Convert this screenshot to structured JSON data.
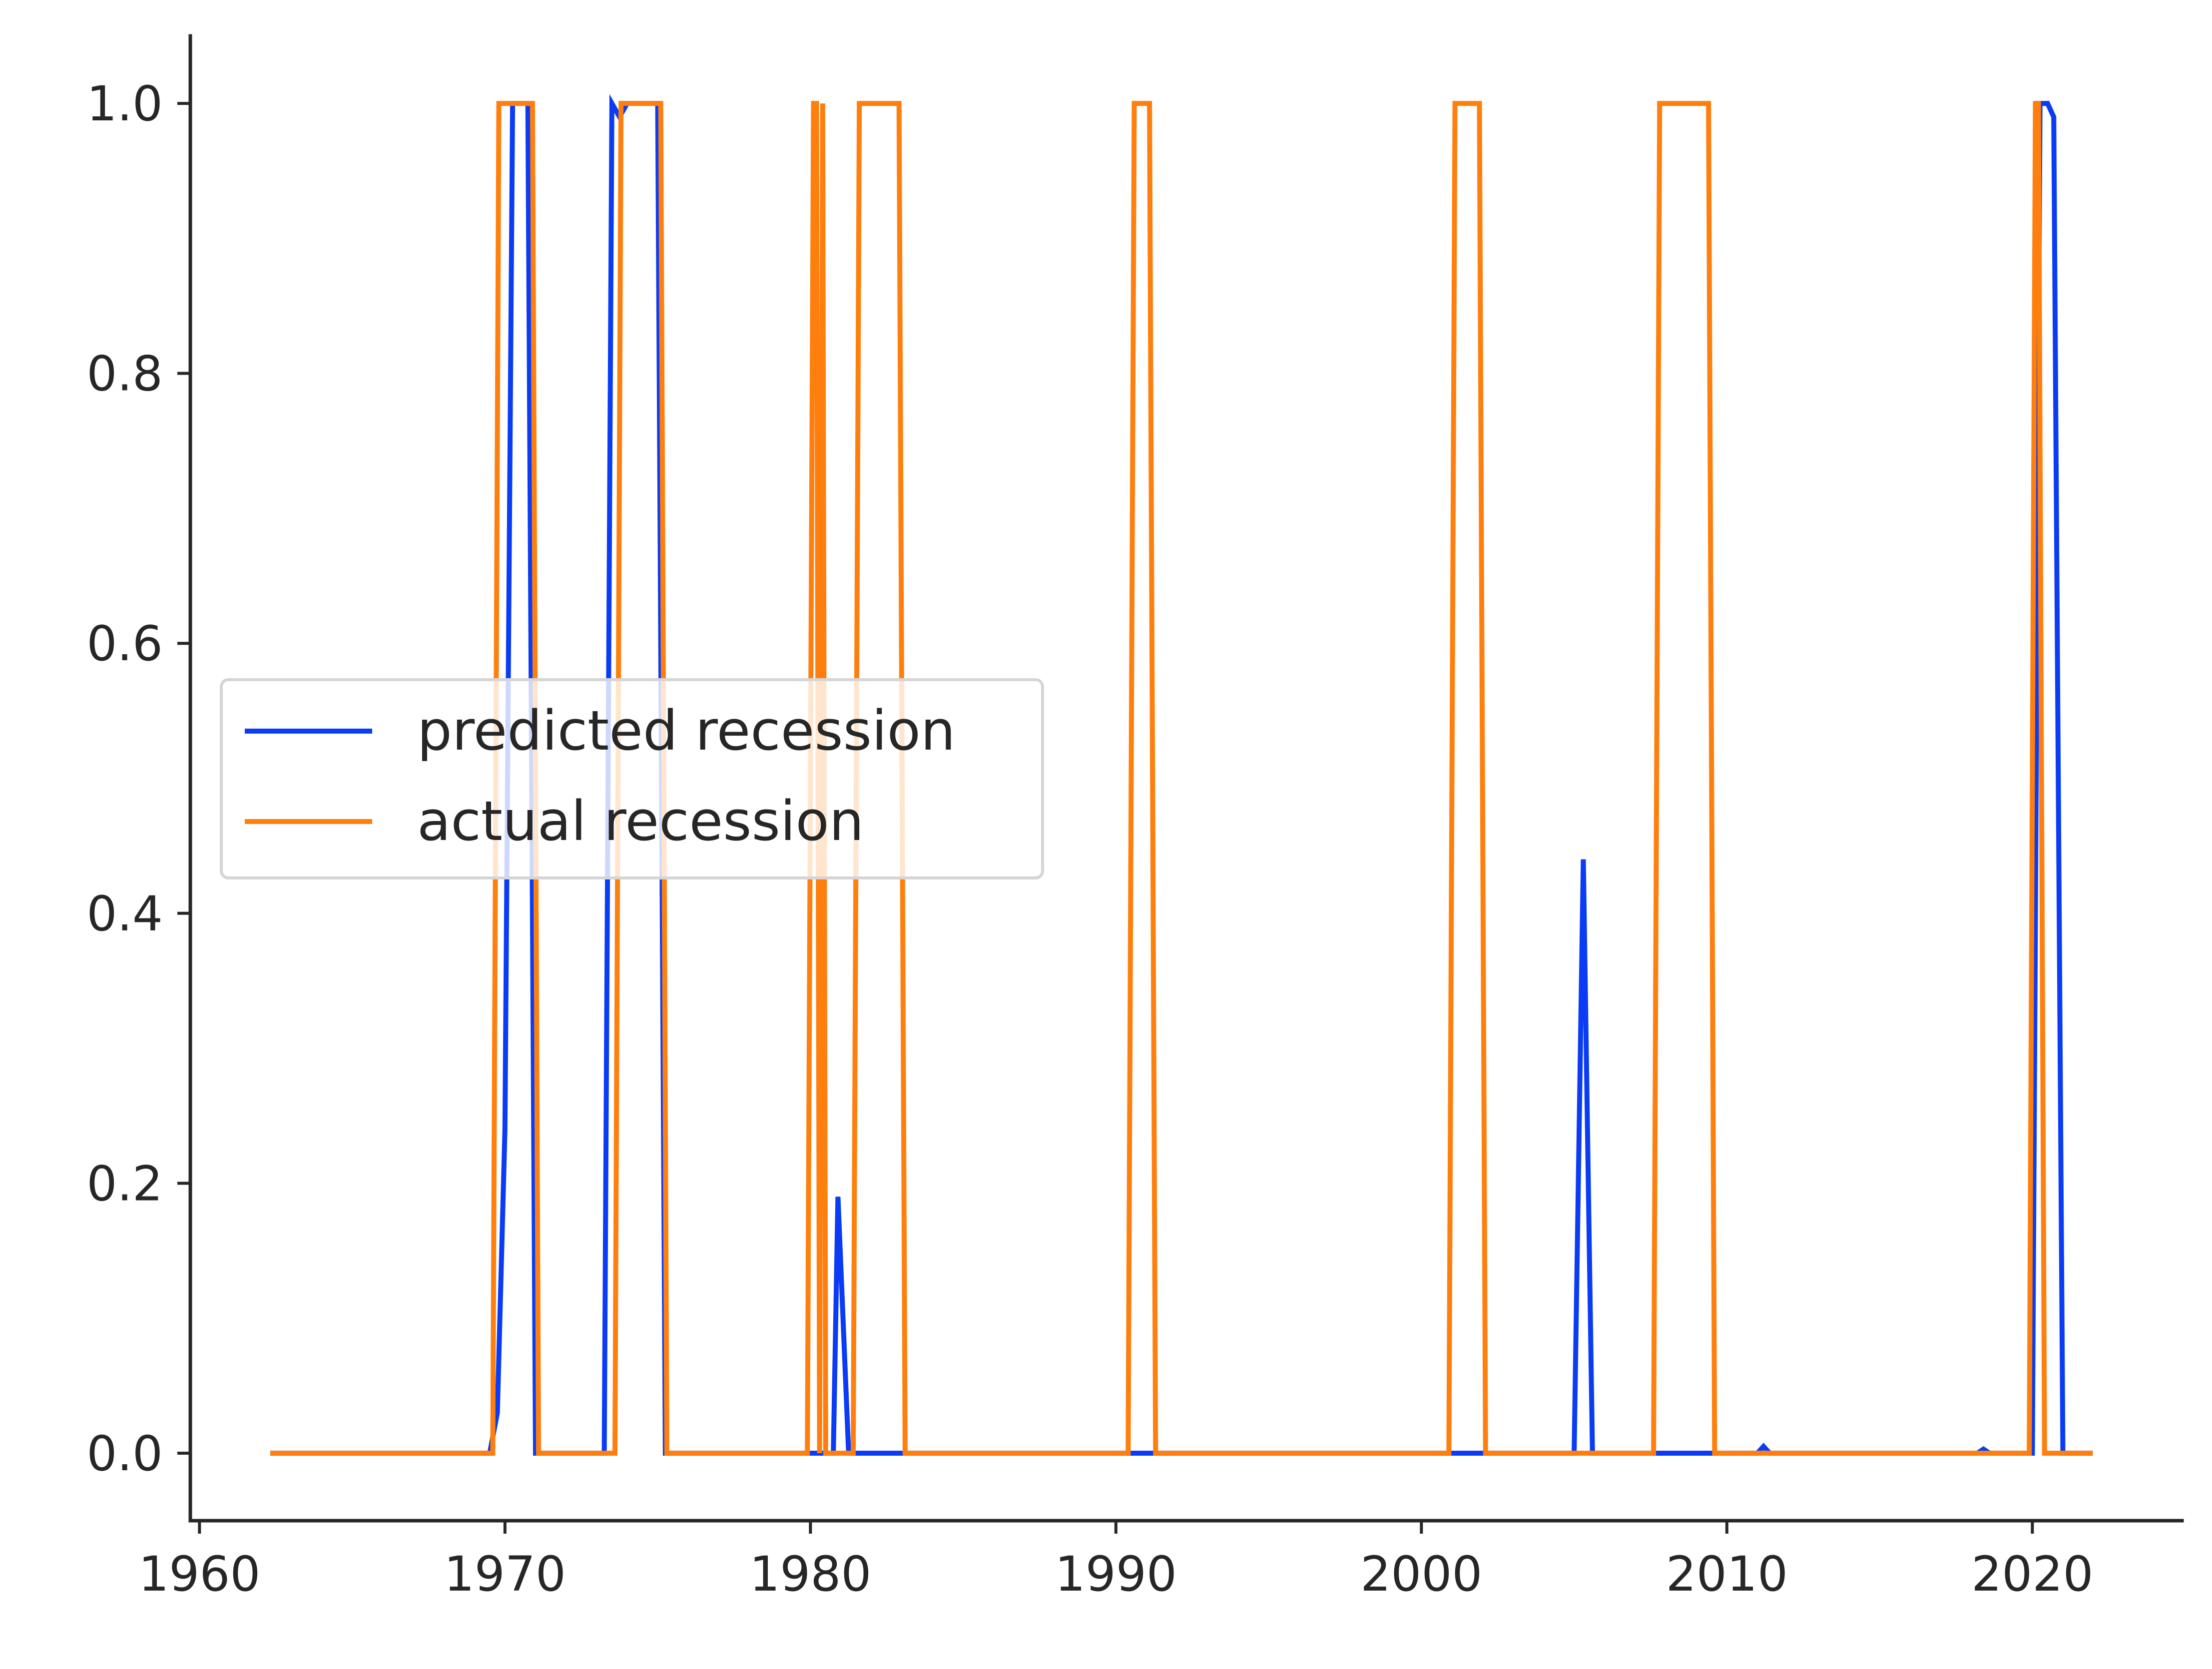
{
  "chart_data": {
    "type": "line",
    "title": "",
    "xlabel": "",
    "ylabel": "",
    "xlim": [
      1959.7,
      2024.9
    ],
    "ylim": [
      -0.05,
      1.05
    ],
    "x_ticks": [
      1960,
      1970,
      1980,
      1990,
      2000,
      2010,
      2020
    ],
    "x_tick_labels": [
      "1960",
      "1970",
      "1980",
      "1990",
      "2000",
      "2010",
      "2020"
    ],
    "y_ticks": [
      0.0,
      0.2,
      0.4,
      0.6,
      0.8,
      1.0
    ],
    "y_tick_labels": [
      "0.0",
      "0.2",
      "0.4",
      "0.6",
      "0.8",
      "1.0"
    ],
    "grid": false,
    "legend_position": "center-left",
    "series": [
      {
        "name": "predicted recession",
        "color": "#0a3cf5",
        "points": [
          [
            1962.4,
            0.0
          ],
          [
            1969.5,
            0.0
          ],
          [
            1969.75,
            0.03
          ],
          [
            1970.0,
            0.24
          ],
          [
            1970.25,
            1.0
          ],
          [
            1970.5,
            1.0
          ],
          [
            1970.75,
            1.0
          ],
          [
            1971.0,
            0.0
          ],
          [
            1973.25,
            0.0
          ],
          [
            1973.5,
            1.0
          ],
          [
            1973.75,
            0.99
          ],
          [
            1974.0,
            1.0
          ],
          [
            1974.5,
            1.0
          ],
          [
            1975.0,
            1.0
          ],
          [
            1975.25,
            0.0
          ],
          [
            1980.75,
            0.0
          ],
          [
            1980.9,
            0.19
          ],
          [
            1981.25,
            0.0
          ],
          [
            2005.0,
            0.0
          ],
          [
            2005.3,
            0.44
          ],
          [
            2005.6,
            0.0
          ],
          [
            2011.0,
            0.0
          ],
          [
            2011.2,
            0.005
          ],
          [
            2011.4,
            0.0
          ],
          [
            2018.2,
            0.0
          ],
          [
            2018.4,
            0.003
          ],
          [
            2018.6,
            0.0
          ],
          [
            2020.0,
            0.0
          ],
          [
            2020.25,
            1.0
          ],
          [
            2020.5,
            1.0
          ],
          [
            2020.7,
            0.99
          ],
          [
            2021.0,
            0.0
          ],
          [
            2021.9,
            0.0
          ]
        ]
      },
      {
        "name": "actual recession",
        "color": "#ff7f0e",
        "points": [
          [
            1962.4,
            0.0
          ],
          [
            1969.6,
            0.0
          ],
          [
            1969.8,
            1.0
          ],
          [
            1970.9,
            1.0
          ],
          [
            1971.1,
            0.0
          ],
          [
            1973.6,
            0.0
          ],
          [
            1973.8,
            1.0
          ],
          [
            1975.1,
            1.0
          ],
          [
            1975.3,
            0.0
          ],
          [
            1979.9,
            0.0
          ],
          [
            1980.1,
            1.0
          ],
          [
            1980.2,
            1.0
          ],
          [
            1980.3,
            0.0
          ],
          [
            1980.4,
            1.0
          ],
          [
            1980.5,
            0.0
          ],
          [
            1981.4,
            0.0
          ],
          [
            1981.6,
            1.0
          ],
          [
            1982.9,
            1.0
          ],
          [
            1983.1,
            0.0
          ],
          [
            1990.4,
            0.0
          ],
          [
            1990.6,
            1.0
          ],
          [
            1991.1,
            1.0
          ],
          [
            1991.3,
            0.0
          ],
          [
            2000.9,
            0.0
          ],
          [
            2001.1,
            1.0
          ],
          [
            2001.9,
            1.0
          ],
          [
            2002.1,
            0.0
          ],
          [
            2007.6,
            0.0
          ],
          [
            2007.8,
            1.0
          ],
          [
            2009.4,
            1.0
          ],
          [
            2009.6,
            0.0
          ],
          [
            2019.9,
            0.0
          ],
          [
            2020.1,
            1.0
          ],
          [
            2020.2,
            1.0
          ],
          [
            2020.4,
            0.0
          ],
          [
            2021.9,
            0.0
          ]
        ]
      }
    ]
  }
}
